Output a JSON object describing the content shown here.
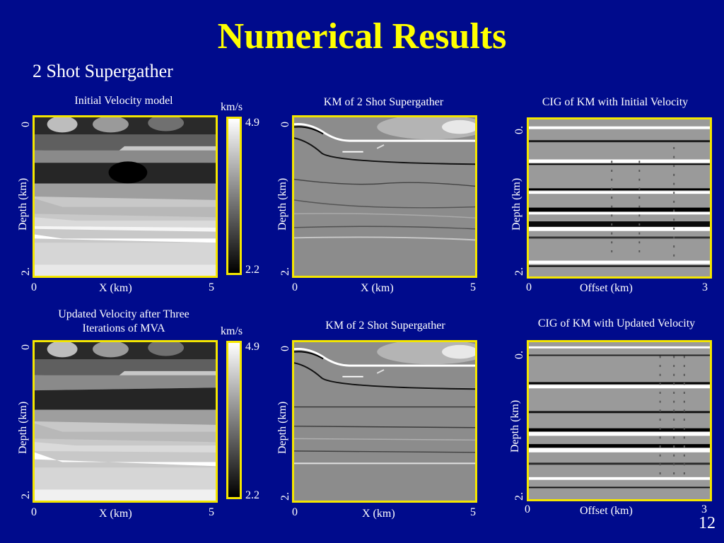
{
  "slide": {
    "title": "Numerical Results",
    "subtitle": "2 Shot Supergather",
    "page_number": "12"
  },
  "panels": {
    "vel_initial": {
      "caption": "Initial Velocity model",
      "ylabel": "Depth (km)",
      "xlabel": "X (km)",
      "ytop": "0",
      "ybot": "2.",
      "xmin": "0",
      "xmax": "5"
    },
    "km_1": {
      "caption": "KM of 2 Shot Supergather",
      "ylabel": "Depth (km)",
      "xlabel": "X (km)",
      "ytop": "0",
      "ybot": "2.",
      "xmin": "0",
      "xmax": "5"
    },
    "cig_initial": {
      "caption": "CIG of KM with Initial Velocity",
      "ylabel": "Depth (km)",
      "xlabel": "Offset (km)",
      "ytop": "0.",
      "ybot": "2.",
      "xmin": "0",
      "xmax": "3"
    },
    "vel_updated": {
      "caption_line1": "Updated Velocity after Three",
      "caption_line2": "Iterations of MVA",
      "ylabel": "Depth (km)",
      "xlabel": "X (km)",
      "ytop": "0",
      "ybot": "2.",
      "xmin": "0",
      "xmax": "5"
    },
    "km_2": {
      "caption": "KM of 2 Shot Supergather",
      "ylabel": "Depth (km)",
      "xlabel": "X (km)",
      "ytop": "0",
      "ybot": "2.",
      "xmin": "0",
      "xmax": "5"
    },
    "cig_updated": {
      "caption": "CIG of KM with Updated Velocity",
      "ylabel": "Depth (km)",
      "xlabel": "Offset (km)",
      "ytop": "0.",
      "ybot": "2.",
      "xmin": "0",
      "xmax": "3"
    }
  },
  "colorbars": {
    "top": {
      "unit": "km/s",
      "max": "4.9",
      "min": "2.2"
    },
    "bottom": {
      "unit": "km/s",
      "max": "4.9",
      "min": "2.2"
    }
  },
  "colors": {
    "background": "#000b8c",
    "title": "#ffff00",
    "frame": "#f4e600"
  }
}
